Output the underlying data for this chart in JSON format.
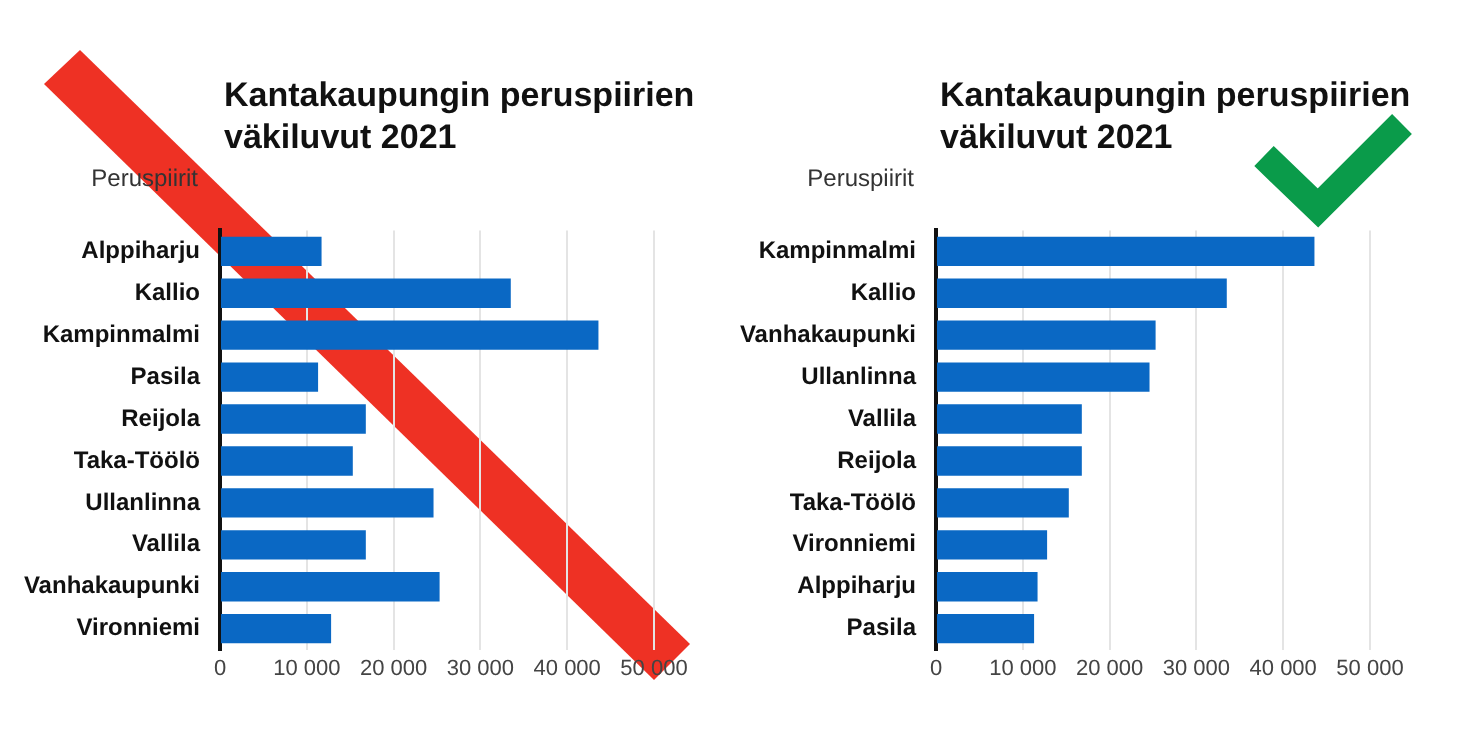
{
  "chart_data": [
    {
      "type": "bar",
      "orientation": "horizontal",
      "title": "Kantakaupungin peruspiirien väkiluvut 2021",
      "ylabel": "Peruspiirit",
      "categories": [
        "Alppiharju",
        "Kallio",
        "Kampinmalmi",
        "Pasila",
        "Reijola",
        "Taka-Töölö",
        "Ullanlinna",
        "Vallila",
        "Vanhakaupunki",
        "Vironniemi"
      ],
      "values": [
        11700,
        33500,
        43600,
        11300,
        16800,
        15300,
        24600,
        16800,
        25300,
        12800
      ],
      "color": "#0a68c4",
      "xlim": [
        0,
        50000
      ],
      "xticks": [
        0,
        {
          "value": 10000,
          "label": "10 000"
        },
        {
          "value": 20000,
          "label": "20 000"
        },
        {
          "value": 30000,
          "label": "30 000"
        },
        {
          "value": 40000,
          "label": "40 000"
        },
        {
          "value": 50000,
          "label": "50 000"
        }
      ],
      "grid": "x"
    },
    {
      "type": "bar",
      "orientation": "horizontal",
      "title": "Kantakaupungin peruspiirien väkiluvut 2021",
      "ylabel": "Peruspiirit",
      "categories": [
        "Kampinmalmi",
        "Kallio",
        "Vanhakaupunki",
        "Ullanlinna",
        "Vallila",
        "Reijola",
        "Taka-Töölö",
        "Vironniemi",
        "Alppiharju",
        "Pasila"
      ],
      "values": [
        43600,
        33500,
        25300,
        24600,
        16800,
        16800,
        15300,
        12800,
        11700,
        11300
      ],
      "color": "#0a68c4",
      "xlim": [
        0,
        50000
      ],
      "xticks": [
        0,
        {
          "value": 10000,
          "label": "10 000"
        },
        {
          "value": 20000,
          "label": "20 000"
        },
        {
          "value": 30000,
          "label": "30 000"
        },
        {
          "value": 40000,
          "label": "40 000"
        },
        {
          "value": 50000,
          "label": "50 000"
        }
      ],
      "grid": "x"
    }
  ]
}
